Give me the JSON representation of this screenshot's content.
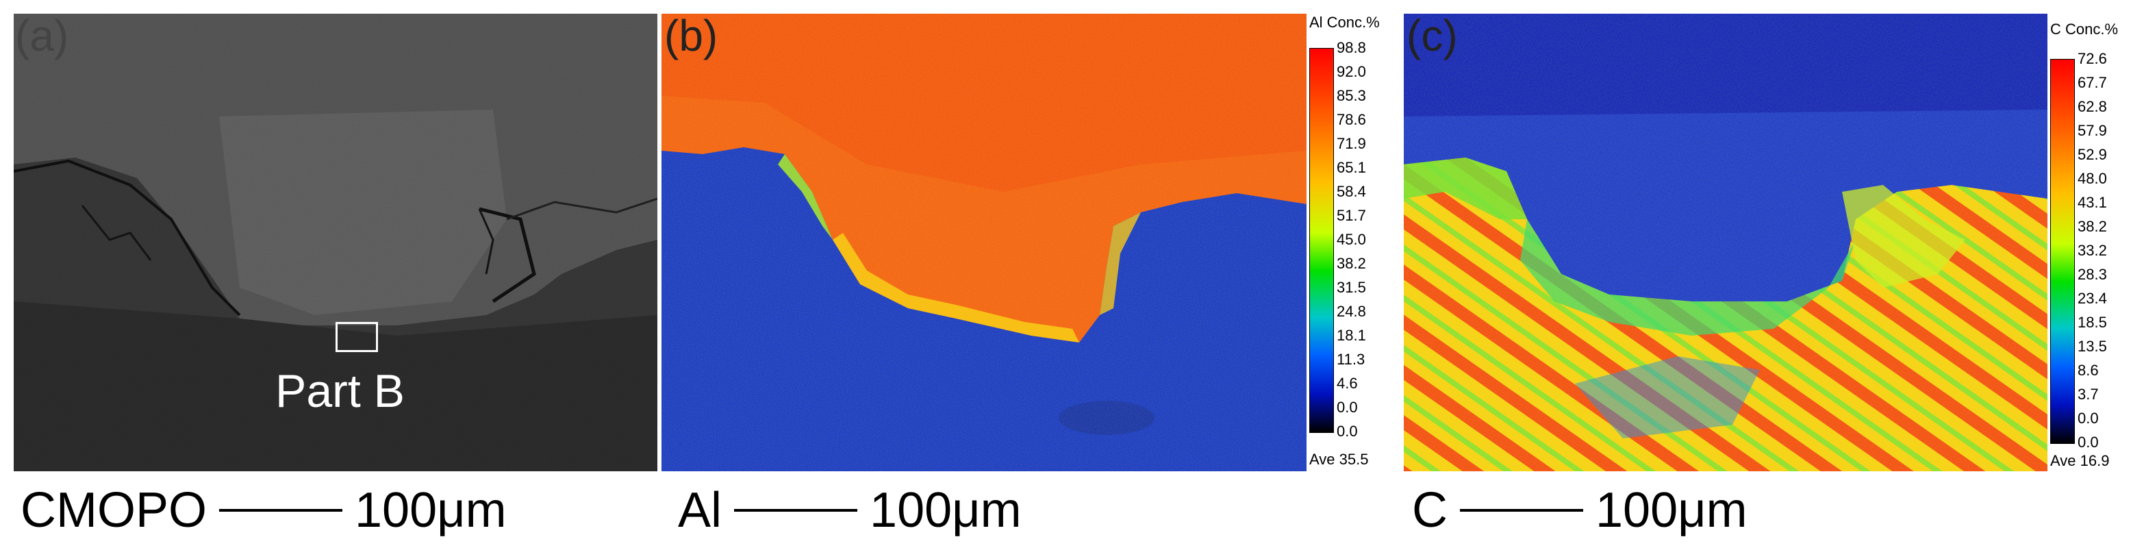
{
  "panel_a": {
    "letter": "(a)",
    "region_label": "Part B",
    "caption_label": "CMOPO",
    "scale_text": "100μm"
  },
  "panel_b": {
    "letter": "(b)",
    "caption_label": "Al",
    "scale_text": "100μm",
    "colorbar": {
      "title": "Al  Conc.%",
      "ticks": [
        "98.8",
        "92.0",
        "85.3",
        "78.6",
        "71.9",
        "65.1",
        "58.4",
        "51.7",
        "45.0",
        "38.2",
        "31.5",
        "24.8",
        "18.1",
        "11.3",
        "4.6",
        "0.0",
        "0.0"
      ],
      "average": "Ave 35.5"
    }
  },
  "panel_c": {
    "letter": "(c)",
    "caption_label": "C",
    "scale_text": "100μm",
    "colorbar": {
      "title": "C  Conc.%",
      "ticks": [
        "72.6",
        "67.7",
        "62.8",
        "57.9",
        "52.9",
        "48.0",
        "43.1",
        "38.2",
        "33.2",
        "28.3",
        "23.4",
        "18.5",
        "13.5",
        "8.6",
        "3.7",
        "0.0",
        "0.0"
      ],
      "average": "Ave 16.9"
    }
  }
}
